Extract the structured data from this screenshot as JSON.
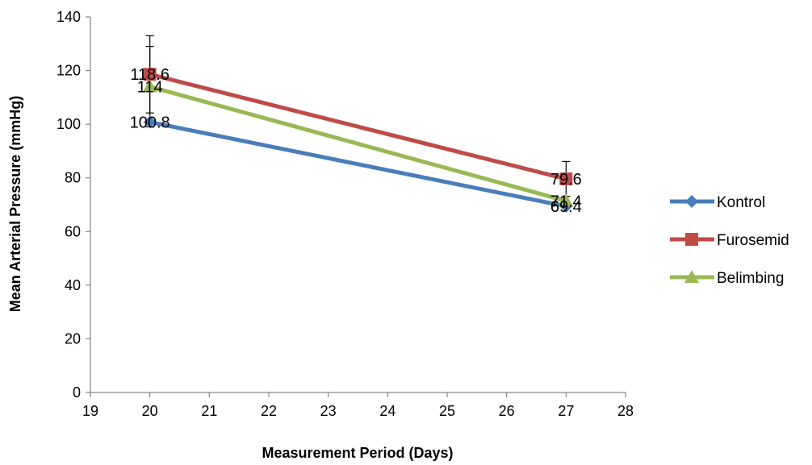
{
  "chart_data": {
    "type": "line",
    "xlabel": "Measurement Period (Days)",
    "ylabel": "Mean Arterial Pressure (mmHg)",
    "xlim": [
      19,
      28
    ],
    "ylim": [
      0,
      140
    ],
    "xticks": [
      19,
      20,
      21,
      22,
      23,
      24,
      25,
      26,
      27,
      28
    ],
    "yticks": [
      0,
      20,
      40,
      60,
      80,
      100,
      120,
      140
    ],
    "grid": false,
    "legend_position": "right",
    "series": [
      {
        "name": "Kontrol",
        "color": "#4a7ebb",
        "marker": "diamond",
        "x": [
          20,
          27
        ],
        "y": [
          100.8,
          69.4
        ],
        "labels": [
          "100.8",
          "69.4"
        ],
        "error": [
          null,
          null
        ]
      },
      {
        "name": "Furosemid",
        "color": "#be4b48",
        "marker": "square",
        "x": [
          20,
          27
        ],
        "y": [
          118.6,
          79.6
        ],
        "labels": [
          "118.6",
          "79.6"
        ],
        "error": [
          14.4,
          6.5
        ]
      },
      {
        "name": "Belimbing",
        "color": "#98b954",
        "marker": "triangle",
        "x": [
          20,
          27
        ],
        "y": [
          114,
          71.4
        ],
        "labels": [
          "114",
          "71.4"
        ],
        "error": [
          15,
          null
        ]
      }
    ]
  }
}
